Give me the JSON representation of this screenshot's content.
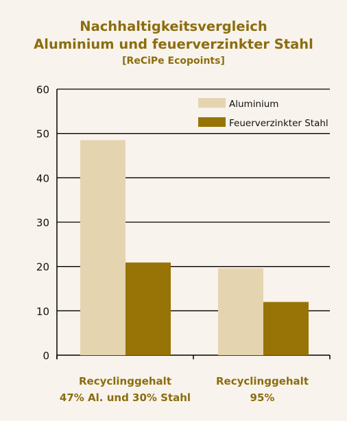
{
  "chart_data": {
    "type": "bar",
    "title_lines": [
      "Nachhaltigkeitsvergleich",
      "Aluminium und feuerverzinkter Stahl"
    ],
    "subtitle": "[ReCiPe Ecopoints]",
    "categories": [
      [
        "Recyclinggehalt",
        "47% Al. und 30% Stahl"
      ],
      [
        "Recyclinggehalt",
        "95%"
      ]
    ],
    "series": [
      {
        "name": "Aluminium",
        "color": "#e5d4b0",
        "values": [
          48.5,
          19.6
        ]
      },
      {
        "name": "Feuerverzinkter Stahl",
        "color": "#977405",
        "values": [
          20.9,
          12.0
        ]
      }
    ],
    "ylim": [
      0,
      60
    ],
    "yticks": [
      0,
      10,
      20,
      30,
      40,
      50,
      60
    ],
    "grid": true,
    "legend_position": "top-right"
  }
}
